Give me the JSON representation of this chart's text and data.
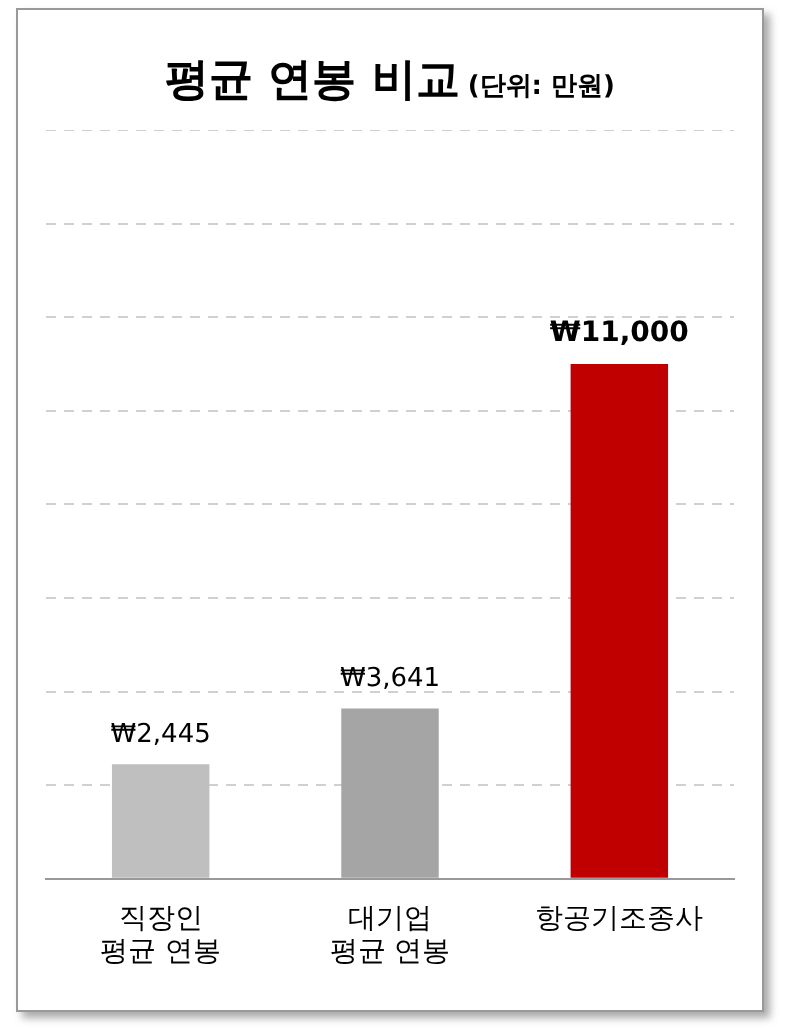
{
  "chart_data": {
    "type": "bar",
    "title": "평균 연봉 비교",
    "subtitle": "(단위: 만원)",
    "categories": [
      "직장인\n평균 연봉",
      "대기업\n평균 연봉",
      "항공기조종사"
    ],
    "values": [
      2445,
      3641,
      11000
    ],
    "colors": [
      "#bfbfbf",
      "#a5a5a5",
      "#c00000"
    ],
    "value_labels": [
      "₩2,445",
      "₩3,641",
      "₩11,000"
    ],
    "ylim": [
      0,
      16000
    ],
    "grid": "y",
    "tick_labels": "x",
    "line_style": "dashed"
  }
}
